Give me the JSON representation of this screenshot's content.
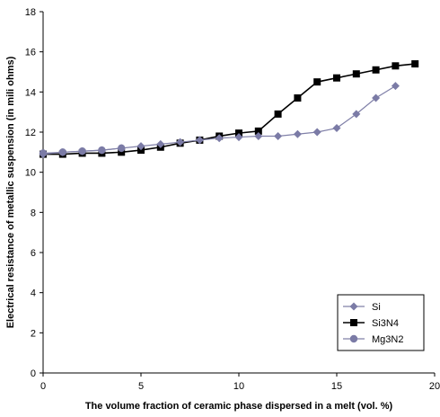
{
  "chart_data": {
    "type": "line",
    "title": "",
    "xlabel": "The volume fraction of ceramic phase dispersed in a melt (vol. %)",
    "ylabel": "Electrical resistance of metallic suspension (in mili ohms)",
    "xlim": [
      0,
      20
    ],
    "ylim": [
      0,
      18
    ],
    "xticks": [
      0,
      5,
      10,
      15,
      20
    ],
    "yticks": [
      0,
      2,
      4,
      6,
      8,
      10,
      12,
      14,
      16,
      18
    ],
    "grid": false,
    "legend_position": "bottom-right",
    "series": [
      {
        "name": "Si",
        "marker": "diamond",
        "color": "#8080a8",
        "markerColor": "#7b7ba6",
        "x": [
          0,
          1,
          2,
          3,
          4,
          5,
          6,
          7,
          8,
          9,
          10,
          11,
          12,
          13,
          14,
          15,
          16,
          17,
          18
        ],
        "y": [
          10.9,
          11.0,
          11.05,
          11.1,
          11.2,
          11.3,
          11.4,
          11.5,
          11.6,
          11.7,
          11.75,
          11.8,
          11.8,
          11.9,
          12.0,
          12.2,
          12.9,
          13.7,
          14.3
        ]
      },
      {
        "name": "Si3N4",
        "marker": "square",
        "color": "#000000",
        "markerColor": "#000000",
        "x": [
          0,
          1,
          2,
          3,
          4,
          5,
          6,
          7,
          8,
          9,
          10,
          11,
          12,
          13,
          14,
          15,
          16,
          17,
          18,
          19
        ],
        "y": [
          10.9,
          10.9,
          10.95,
          10.95,
          11.0,
          11.1,
          11.25,
          11.45,
          11.6,
          11.8,
          11.95,
          12.05,
          12.9,
          13.7,
          14.5,
          14.7,
          14.9,
          15.1,
          15.3,
          15.4
        ]
      },
      {
        "name": "Mg3N2",
        "marker": "circle",
        "color": "#8080a8",
        "markerColor": "#7b7ba6",
        "x": [
          0,
          1,
          2,
          3,
          4
        ],
        "y": [
          10.95,
          11.0,
          11.05,
          11.1,
          11.2
        ]
      }
    ]
  }
}
